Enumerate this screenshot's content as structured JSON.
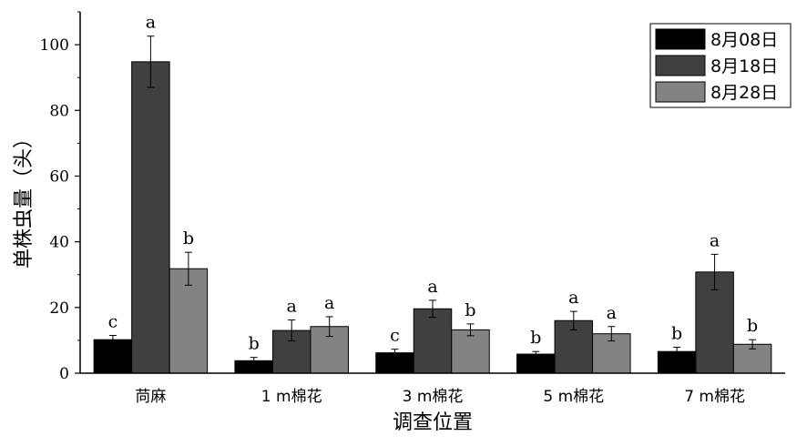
{
  "chart_data": {
    "type": "bar",
    "xlabel": "调查位置",
    "ylabel": "单株虫量（头）",
    "ylim": [
      0,
      110
    ],
    "yticks": [
      0,
      20,
      40,
      60,
      80,
      100
    ],
    "categories": [
      "苘麻",
      "1 m棉花",
      "3 m棉花",
      "5 m棉花",
      "7 m棉花"
    ],
    "legend_position": "top-right",
    "grid": false,
    "series": [
      {
        "name": "8月08日",
        "color": "#000000",
        "values": [
          10.2,
          3.8,
          6.2,
          5.8,
          6.6
        ],
        "errors": [
          1.3,
          1.0,
          1.1,
          0.8,
          1.3
        ],
        "letters": [
          "c",
          "b",
          "c",
          "b",
          "b"
        ]
      },
      {
        "name": "8月18日",
        "color": "#404040",
        "values": [
          94.8,
          13.0,
          19.6,
          16.0,
          30.8
        ],
        "errors": [
          7.8,
          3.2,
          2.6,
          2.8,
          5.4
        ],
        "letters": [
          "a",
          "a",
          "a",
          "a",
          "a"
        ]
      },
      {
        "name": "8月28日",
        "color": "#838383",
        "values": [
          31.8,
          14.2,
          13.2,
          12.0,
          8.8
        ],
        "errors": [
          5.0,
          3.0,
          1.8,
          2.2,
          1.4
        ],
        "letters": [
          "b",
          "a",
          "b",
          "a",
          "b"
        ]
      }
    ]
  }
}
